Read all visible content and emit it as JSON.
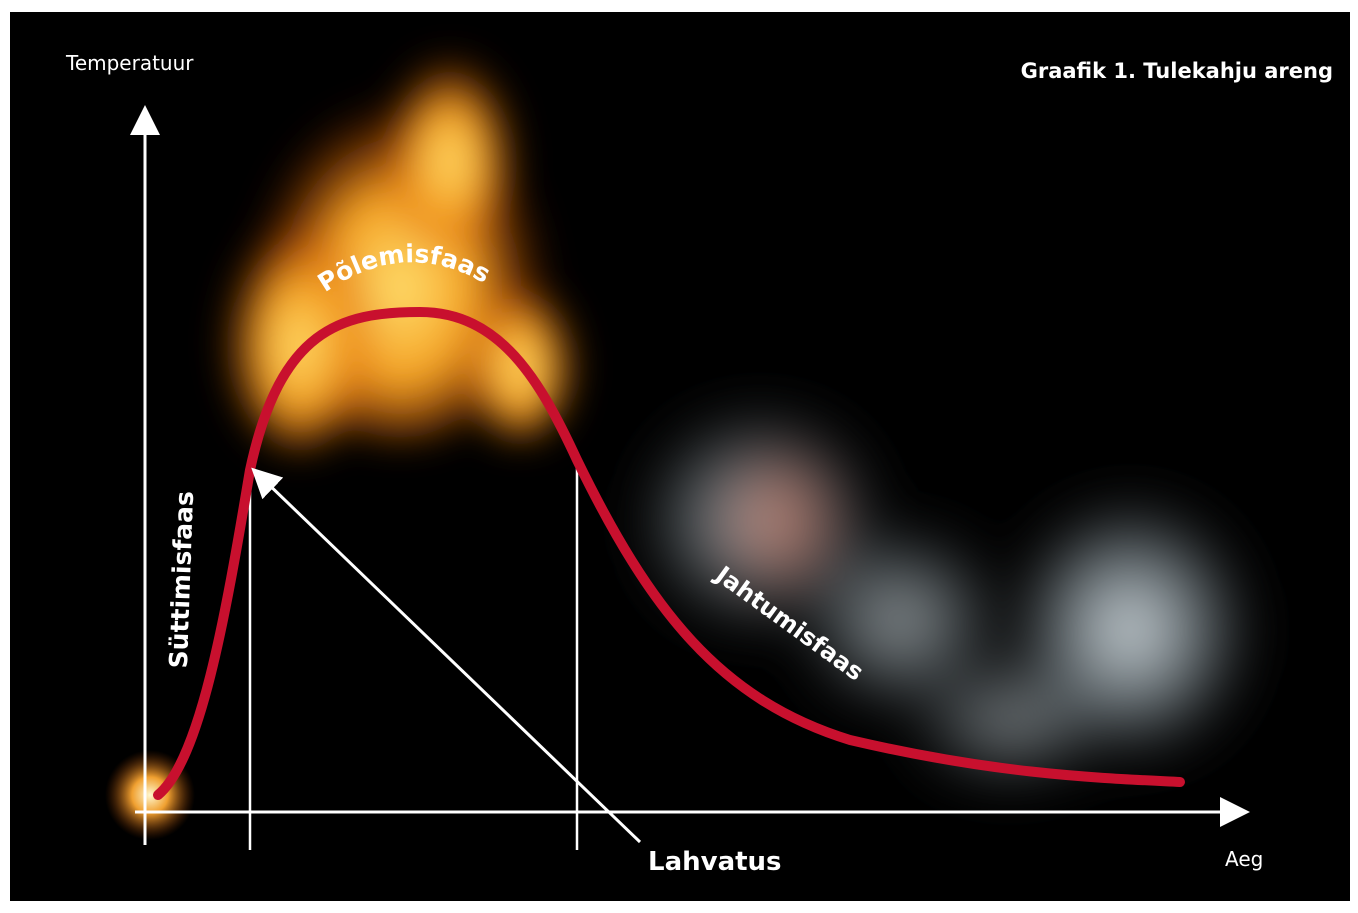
{
  "header": {
    "title": "Graafik 1. Tulekahju areng"
  },
  "axes": {
    "y_label": "Temperatuur",
    "x_label": "Aeg"
  },
  "phases": [
    "Süttimisfaas",
    "Põlemisfaas",
    "Jahtumisfaas"
  ],
  "annotation": "Lahvatus"
}
